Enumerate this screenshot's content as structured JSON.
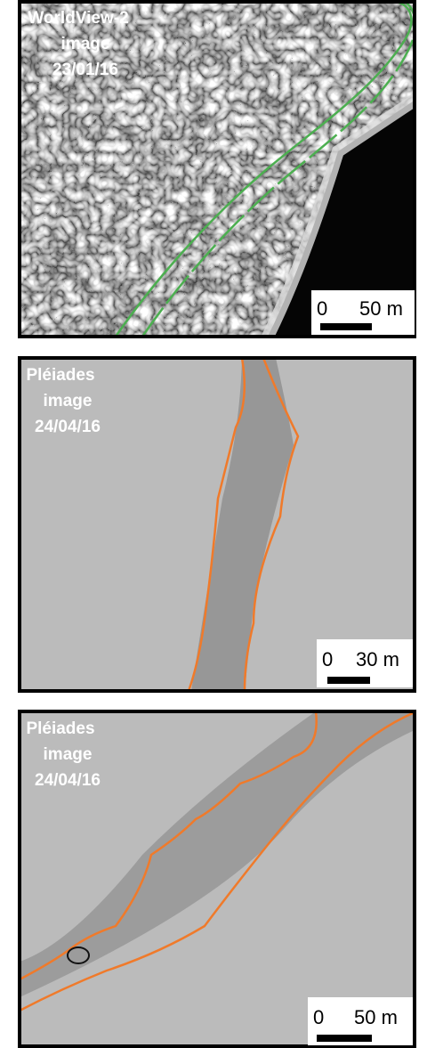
{
  "panels": [
    {
      "label": [
        "WorldView-2",
        "image",
        "23/01/16"
      ],
      "scale": [
        "0",
        "50 m"
      ]
    },
    {
      "label": [
        "Pléiades",
        "image",
        "24/04/16"
      ],
      "scale": [
        "0",
        "30 m"
      ]
    },
    {
      "label": [
        "Pléiades",
        "image",
        "24/04/16"
      ],
      "scale": [
        "0",
        "50 m"
      ]
    }
  ]
}
